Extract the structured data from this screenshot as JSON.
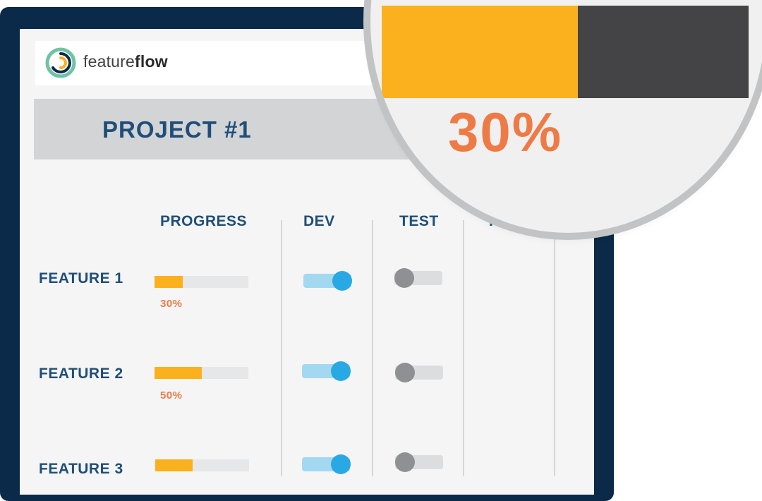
{
  "app": {
    "logo_text_light": "feature",
    "logo_text_bold": "flow"
  },
  "project": {
    "title": "PROJECT #1"
  },
  "columns": [
    "PROGRESS",
    "DEV",
    "TEST",
    "PR"
  ],
  "features": [
    {
      "name": "FEATURE 1",
      "progress": 0.3,
      "progress_label": "30%",
      "dev": true,
      "test": false
    },
    {
      "name": "FEATURE 2",
      "progress": 0.5,
      "progress_label": "50%",
      "dev": true,
      "test": false
    },
    {
      "name": "FEATURE 3",
      "progress": 0.4,
      "progress_label": "",
      "dev": true,
      "test": false
    }
  ],
  "magnifier": {
    "progress": 0.3,
    "label": "30%"
  },
  "colors": {
    "navy_frame": "#0b2948",
    "heading_blue": "#1f4e79",
    "progress_yellow": "#fbb11d",
    "percent_orange": "#ee7b45",
    "toggle_on_blue": "#29a9e3",
    "toggle_off_gray": "#8f9093"
  },
  "icons": {
    "logo": "featureflow-logo-icon"
  }
}
